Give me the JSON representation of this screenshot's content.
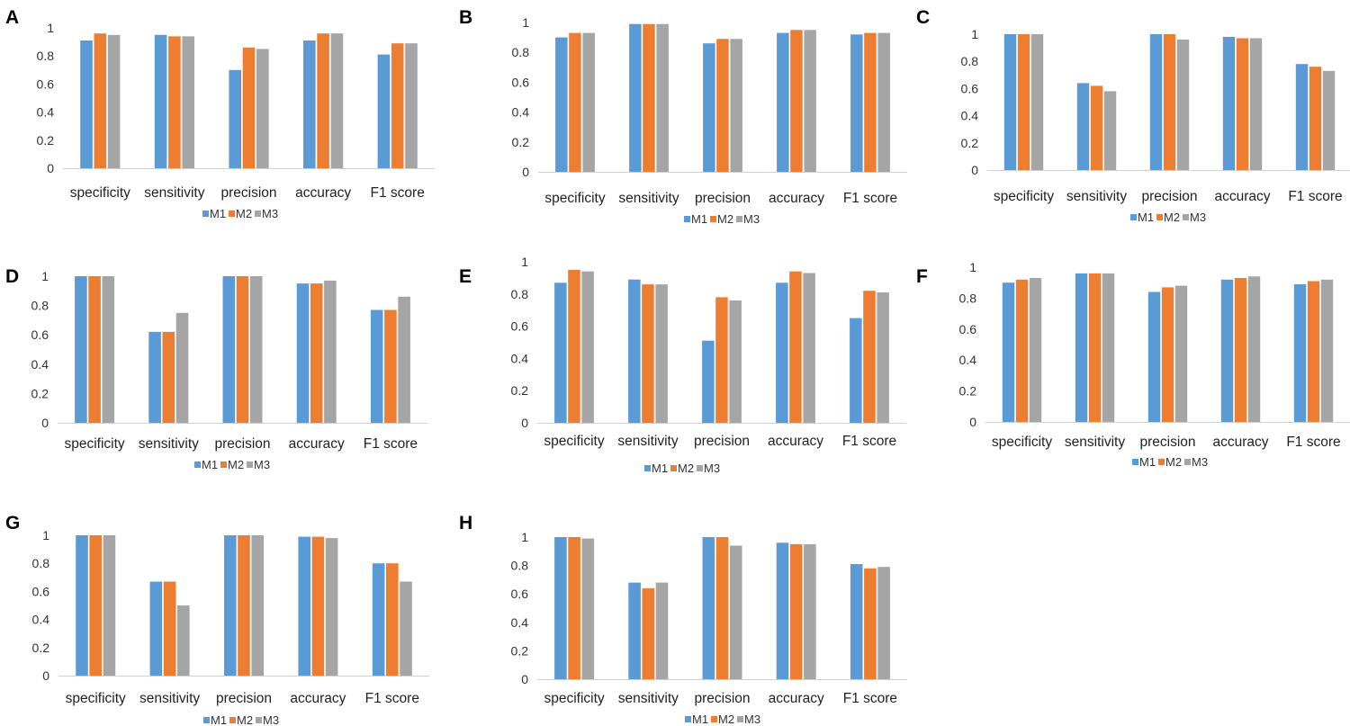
{
  "series_names": [
    "M1",
    "M2",
    "M3"
  ],
  "colors": {
    "M1": "#5b9bd5",
    "M2": "#ed7d31",
    "M3": "#a5a5a5"
  },
  "chart_data": [
    {
      "type": "bar",
      "label": "A",
      "categories": [
        "specificity",
        "sensitivity",
        "precision",
        "accuracy",
        "F1 score"
      ],
      "series": [
        {
          "name": "M1",
          "values": [
            0.91,
            0.95,
            0.7,
            0.91,
            0.81
          ]
        },
        {
          "name": "M2",
          "values": [
            0.96,
            0.94,
            0.86,
            0.96,
            0.89
          ]
        },
        {
          "name": "M3",
          "values": [
            0.95,
            0.94,
            0.85,
            0.96,
            0.89
          ]
        }
      ],
      "ylim": [
        0,
        1
      ],
      "yticks": [
        "0",
        "0.2",
        "0.4",
        "0.6",
        "0.8",
        "1"
      ],
      "legend": "bottom"
    },
    {
      "type": "bar",
      "label": "B",
      "categories": [
        "specificity",
        "sensitivity",
        "precision",
        "accuracy",
        "F1 score"
      ],
      "series": [
        {
          "name": "M1",
          "values": [
            0.9,
            0.99,
            0.86,
            0.93,
            0.92
          ]
        },
        {
          "name": "M2",
          "values": [
            0.93,
            0.99,
            0.89,
            0.95,
            0.93
          ]
        },
        {
          "name": "M3",
          "values": [
            0.93,
            0.99,
            0.89,
            0.95,
            0.93
          ]
        }
      ],
      "ylim": [
        0,
        1
      ],
      "yticks": [
        "0",
        "0.2",
        "0.4",
        "0.6",
        "0.8",
        "1"
      ],
      "legend": "bottom"
    },
    {
      "type": "bar",
      "label": "C",
      "categories": [
        "specificity",
        "sensitivity",
        "precision",
        "accuracy",
        "F1 score"
      ],
      "series": [
        {
          "name": "M1",
          "values": [
            1.0,
            0.64,
            1.0,
            0.98,
            0.78
          ]
        },
        {
          "name": "M2",
          "values": [
            1.0,
            0.62,
            1.0,
            0.97,
            0.76
          ]
        },
        {
          "name": "M3",
          "values": [
            1.0,
            0.58,
            0.96,
            0.97,
            0.73
          ]
        }
      ],
      "ylim": [
        0,
        1
      ],
      "yticks": [
        "0",
        "0.2",
        "0.4",
        "0.6",
        "0.8",
        "1"
      ],
      "legend": "bottom"
    },
    {
      "type": "bar",
      "label": "D",
      "categories": [
        "specificity",
        "sensitivity",
        "precision",
        "accuracy",
        "F1 score"
      ],
      "series": [
        {
          "name": "M1",
          "values": [
            1.0,
            0.62,
            1.0,
            0.95,
            0.77
          ]
        },
        {
          "name": "M2",
          "values": [
            1.0,
            0.62,
            1.0,
            0.95,
            0.77
          ]
        },
        {
          "name": "M3",
          "values": [
            1.0,
            0.75,
            1.0,
            0.97,
            0.86
          ]
        }
      ],
      "ylim": [
        0,
        1
      ],
      "yticks": [
        "0",
        "0.2",
        "0.4",
        "0.6",
        "0.8",
        "1"
      ],
      "legend": "bottom"
    },
    {
      "type": "bar",
      "label": "E",
      "categories": [
        "specificity",
        "sensitivity",
        "precision",
        "accuracy",
        "F1 score"
      ],
      "series": [
        {
          "name": "M1",
          "values": [
            0.87,
            0.89,
            0.51,
            0.87,
            0.65
          ]
        },
        {
          "name": "M2",
          "values": [
            0.95,
            0.86,
            0.78,
            0.94,
            0.82
          ]
        },
        {
          "name": "M3",
          "values": [
            0.94,
            0.86,
            0.76,
            0.93,
            0.81
          ]
        }
      ],
      "ylim": [
        0,
        1
      ],
      "yticks": [
        "0",
        "0.2",
        "0.4",
        "0.6",
        "0.8",
        "1"
      ],
      "legend": "bottom"
    },
    {
      "type": "bar",
      "label": "F",
      "categories": [
        "specificity",
        "sensitivity",
        "precision",
        "accuracy",
        "F1 score"
      ],
      "series": [
        {
          "name": "M1",
          "values": [
            0.9,
            0.96,
            0.84,
            0.92,
            0.89
          ]
        },
        {
          "name": "M2",
          "values": [
            0.92,
            0.96,
            0.87,
            0.93,
            0.91
          ]
        },
        {
          "name": "M3",
          "values": [
            0.93,
            0.96,
            0.88,
            0.94,
            0.92
          ]
        }
      ],
      "ylim": [
        0,
        1
      ],
      "yticks": [
        "0",
        "0.2",
        "0.4",
        "0.6",
        "0.8",
        "1"
      ],
      "legend": "bottom"
    },
    {
      "type": "bar",
      "label": "G",
      "categories": [
        "specificity",
        "sensitivity",
        "precision",
        "accuracy",
        "F1 score"
      ],
      "series": [
        {
          "name": "M1",
          "values": [
            1.0,
            0.67,
            1.0,
            0.99,
            0.8
          ]
        },
        {
          "name": "M2",
          "values": [
            1.0,
            0.67,
            1.0,
            0.99,
            0.8
          ]
        },
        {
          "name": "M3",
          "values": [
            1.0,
            0.5,
            1.0,
            0.98,
            0.67
          ]
        }
      ],
      "ylim": [
        0,
        1
      ],
      "yticks": [
        "0",
        "0.2",
        "0.4",
        "0.6",
        "0.8",
        "1"
      ],
      "legend": "bottom"
    },
    {
      "type": "bar",
      "label": "H",
      "categories": [
        "specificity",
        "sensitivity",
        "precision",
        "accuracy",
        "F1 score"
      ],
      "series": [
        {
          "name": "M1",
          "values": [
            1.0,
            0.68,
            1.0,
            0.96,
            0.81
          ]
        },
        {
          "name": "M2",
          "values": [
            1.0,
            0.64,
            1.0,
            0.95,
            0.78
          ]
        },
        {
          "name": "M3",
          "values": [
            0.99,
            0.68,
            0.94,
            0.95,
            0.79
          ]
        }
      ],
      "ylim": [
        0,
        1
      ],
      "yticks": [
        "0",
        "0.2",
        "0.4",
        "0.6",
        "0.8",
        "1"
      ],
      "legend": "bottom"
    }
  ]
}
